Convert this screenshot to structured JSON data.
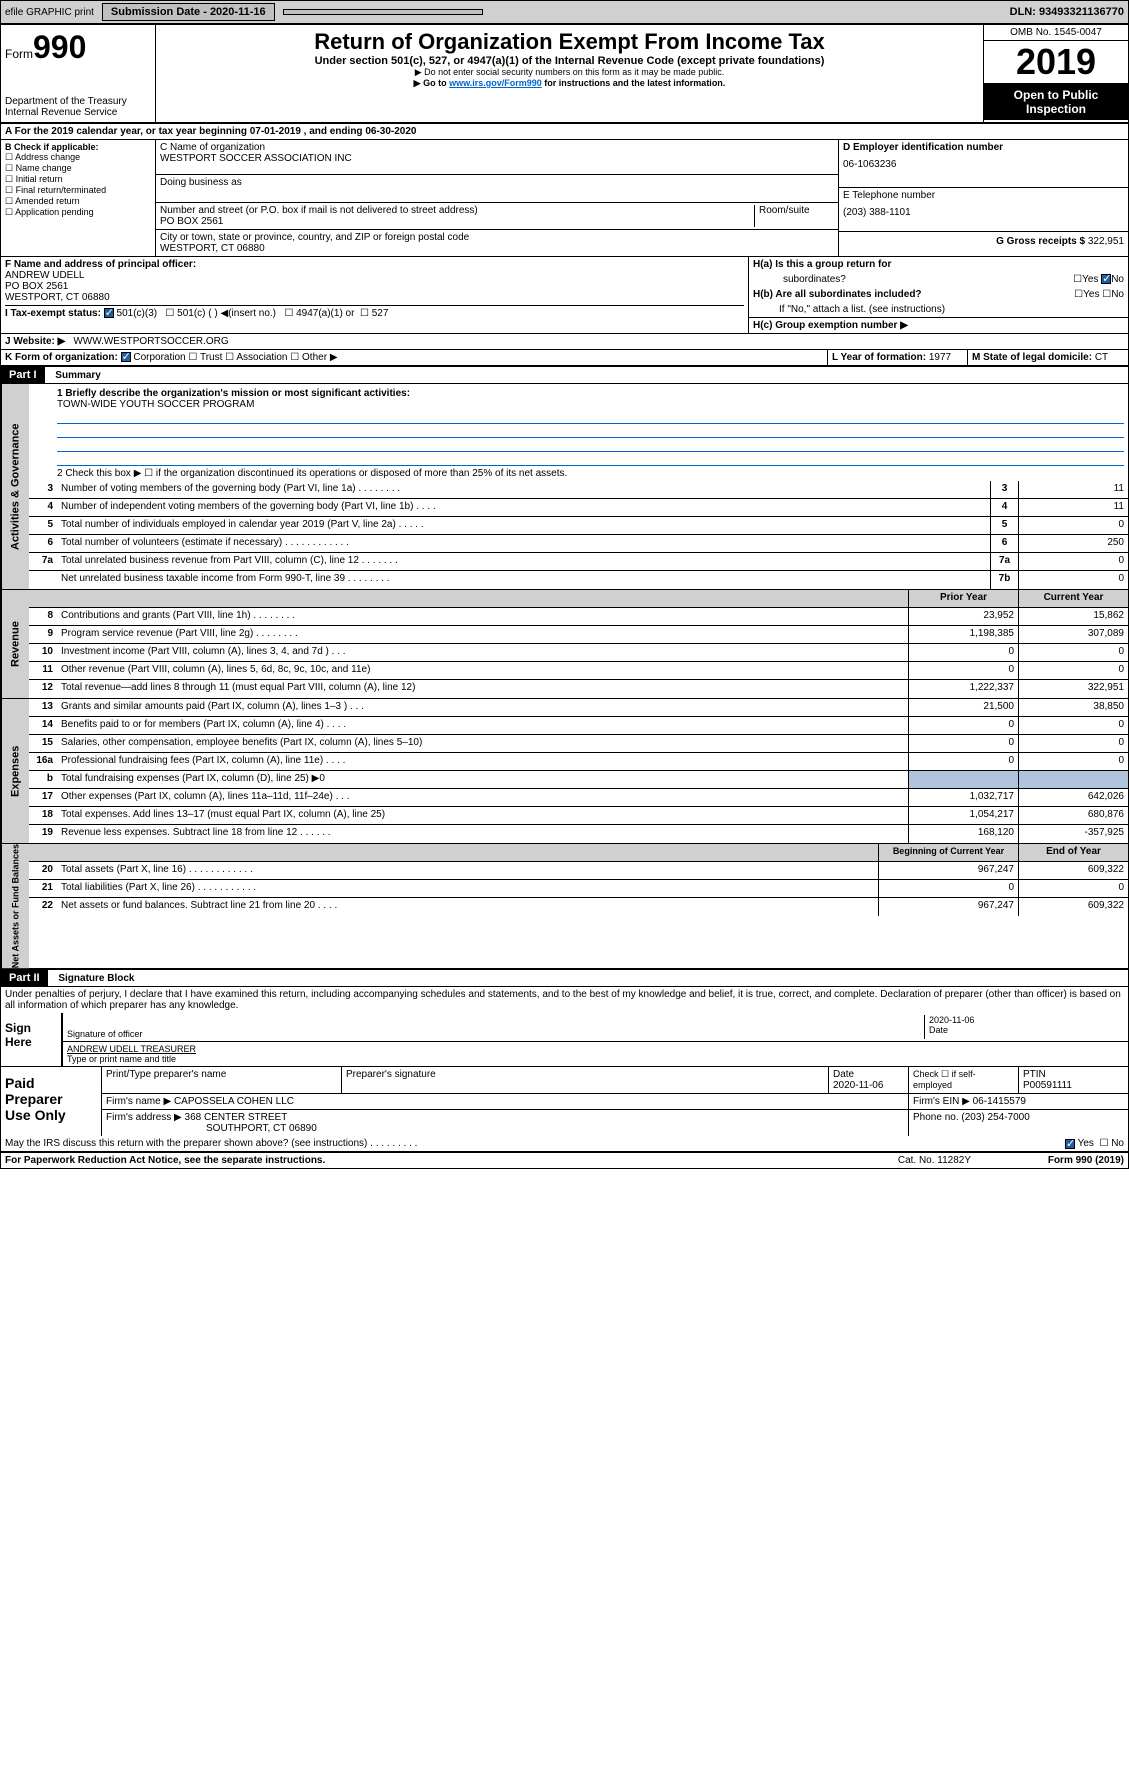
{
  "topbar": {
    "efile": "efile GRAPHIC print",
    "subdate_label": "Submission Date - 2020-11-16",
    "dln": "DLN: 93493321136770"
  },
  "header": {
    "form_word": "Form",
    "form_num": "990",
    "dept": "Department of the Treasury",
    "irs": "Internal Revenue Service",
    "title": "Return of Organization Exempt From Income Tax",
    "sub1": "Under section 501(c), 527, or 4947(a)(1) of the Internal Revenue Code (except private foundations)",
    "sub2": "▶ Do not enter social security numbers on this form as it may be made public.",
    "sub3_a": "▶ Go to ",
    "sub3_link": "www.irs.gov/Form990",
    "sub3_b": " for instructions and the latest information.",
    "omb": "OMB No. 1545-0047",
    "year": "2019",
    "open1": "Open to Public",
    "open2": "Inspection"
  },
  "period": "A For the 2019 calendar year, or tax year beginning 07-01-2019    , and ending 06-30-2020",
  "secB": {
    "label": "B Check if applicable:",
    "opts": [
      "Address change",
      "Name change",
      "Initial return",
      "Final return/terminated",
      "Amended return",
      "Application pending"
    ]
  },
  "secC": {
    "name_label": "C Name of organization",
    "name": "WESTPORT SOCCER ASSOCIATION INC",
    "dba_label": "Doing business as",
    "addr_label": "Number and street (or P.O. box if mail is not delivered to street address)",
    "room_label": "Room/suite",
    "addr": "PO BOX 2561",
    "city_label": "City or town, state or province, country, and ZIP or foreign postal code",
    "city": "WESTPORT, CT  06880"
  },
  "secD": {
    "label": "D Employer identification number",
    "val": "06-1063236"
  },
  "secE": {
    "label": "E Telephone number",
    "val": "(203) 388-1101"
  },
  "secG": {
    "label": "G Gross receipts $",
    "val": "322,951"
  },
  "secF": {
    "label": "F Name and address of principal officer:",
    "name": "ANDREW UDELL",
    "addr": "PO BOX 2561",
    "city": "WESTPORT, CT  06880"
  },
  "secH": {
    "a": "H(a)  Is this a group return for",
    "a2": "subordinates?",
    "b": "H(b)  Are all subordinates included?",
    "b2": "If \"No,\" attach a list. (see instructions)",
    "c": "H(c)  Group exemption number ▶",
    "yes": "Yes",
    "no": "No"
  },
  "secI": {
    "label": "I     Tax-exempt status:",
    "o1": "501(c)(3)",
    "o2": "501(c) (   ) ◀(insert no.)",
    "o3": "4947(a)(1) or",
    "o4": "527"
  },
  "secJ": {
    "label": "J    Website: ▶",
    "val": "WWW.WESTPORTSOCCER.ORG"
  },
  "secK": {
    "label": "K Form of organization:",
    "o1": "Corporation",
    "o2": "Trust",
    "o3": "Association",
    "o4": "Other ▶"
  },
  "secL": {
    "label": "L Year of formation:",
    "val": "1977"
  },
  "secM": {
    "label": "M State of legal domicile:",
    "val": "CT"
  },
  "part1": {
    "label": "Part I",
    "title": "Summary"
  },
  "summary": {
    "l1_label": "1  Briefly describe the organization's mission or most significant activities:",
    "l1_val": "TOWN-WIDE YOUTH SOCCER PROGRAM",
    "l2": "2   Check this box ▶ ☐  if the organization discontinued its operations or disposed of more than 25% of its net assets.",
    "lines": [
      {
        "n": "3",
        "d": "Number of voting members of the governing body (Part VI, line 1a)  .   .   .   .   .   .   .   .",
        "b": "3",
        "v": "11"
      },
      {
        "n": "4",
        "d": "Number of independent voting members of the governing body (Part VI, line 1b)  .   .   .   .",
        "b": "4",
        "v": "11"
      },
      {
        "n": "5",
        "d": "Total number of individuals employed in calendar year 2019 (Part V, line 2a)  .   .   .   .   .",
        "b": "5",
        "v": "0"
      },
      {
        "n": "6",
        "d": "Total number of volunteers (estimate if necessary)   .   .   .   .   .   .   .   .   .   .   .   .",
        "b": "6",
        "v": "250"
      },
      {
        "n": "7a",
        "d": "Total unrelated business revenue from Part VIII, column (C), line 12  .   .   .   .   .   .   .",
        "b": "7a",
        "v": "0"
      },
      {
        "n": "",
        "d": "Net unrelated business taxable income from Form 990-T, line 39  .   .   .   .   .   .   .   .",
        "b": "7b",
        "v": "0"
      }
    ],
    "py": "Prior Year",
    "cy": "Current Year",
    "rev": [
      {
        "n": "8",
        "d": "Contributions and grants (Part VIII, line 1h)  .   .   .   .   .   .   .   .",
        "p": "23,952",
        "c": "15,862"
      },
      {
        "n": "9",
        "d": "Program service revenue (Part VIII, line 2g)   .   .   .   .   .   .   .   .",
        "p": "1,198,385",
        "c": "307,089"
      },
      {
        "n": "10",
        "d": "Investment income (Part VIII, column (A), lines 3, 4, and 7d )   .   .   .",
        "p": "0",
        "c": "0"
      },
      {
        "n": "11",
        "d": "Other revenue (Part VIII, column (A), lines 5, 6d, 8c, 9c, 10c, and 11e)",
        "p": "0",
        "c": "0"
      },
      {
        "n": "12",
        "d": "Total revenue—add lines 8 through 11 (must equal Part VIII, column (A), line 12)",
        "p": "1,222,337",
        "c": "322,951"
      }
    ],
    "exp": [
      {
        "n": "13",
        "d": "Grants and similar amounts paid (Part IX, column (A), lines 1–3 )   .   .   .",
        "p": "21,500",
        "c": "38,850"
      },
      {
        "n": "14",
        "d": "Benefits paid to or for members (Part IX, column (A), line 4)   .   .   .   .",
        "p": "0",
        "c": "0"
      },
      {
        "n": "15",
        "d": "Salaries, other compensation, employee benefits (Part IX, column (A), lines 5–10)",
        "p": "0",
        "c": "0"
      },
      {
        "n": "16a",
        "d": "Professional fundraising fees (Part IX, column (A), line 11e)   .   .   .   .",
        "p": "0",
        "c": "0"
      },
      {
        "n": "b",
        "d": "Total fundraising expenses (Part IX, column (D), line 25) ▶0",
        "p": "",
        "c": "",
        "shade": true
      },
      {
        "n": "17",
        "d": "Other expenses (Part IX, column (A), lines 11a–11d, 11f–24e)   .   .   .",
        "p": "1,032,717",
        "c": "642,026"
      },
      {
        "n": "18",
        "d": "Total expenses. Add lines 13–17 (must equal Part IX, column (A), line 25)",
        "p": "1,054,217",
        "c": "680,876"
      },
      {
        "n": "19",
        "d": "Revenue less expenses. Subtract line 18 from line 12   .   .   .   .   .   .",
        "p": "168,120",
        "c": "-357,925"
      }
    ],
    "bcy": "Beginning of Current Year",
    "eoy": "End of Year",
    "net": [
      {
        "n": "20",
        "d": "Total assets (Part X, line 16)   .   .   .   .   .   .   .   .   .   .   .   .",
        "p": "967,247",
        "c": "609,322"
      },
      {
        "n": "21",
        "d": "Total liabilities (Part X, line 26)   .   .   .   .   .   .   .   .   .   .   .",
        "p": "0",
        "c": "0"
      },
      {
        "n": "22",
        "d": "Net assets or fund balances. Subtract line 21 from line 20   .   .   .   .",
        "p": "967,247",
        "c": "609,322"
      }
    ]
  },
  "vlabels": {
    "gov": "Activities & Governance",
    "rev": "Revenue",
    "exp": "Expenses",
    "net": "Net Assets or Fund Balances"
  },
  "part2": {
    "label": "Part II",
    "title": "Signature Block"
  },
  "perjury": "Under penalties of perjury, I declare that I have examined this return, including accompanying schedules and statements, and to the best of my knowledge and belief, it is true, correct, and complete. Declaration of preparer (other than officer) is based on all information of which preparer has any knowledge.",
  "sign": {
    "label1": "Sign",
    "label2": "Here",
    "sig_label": "Signature of officer",
    "date": "2020-11-06",
    "date_label": "Date",
    "name": "ANDREW UDELL TREASURER",
    "name_label": "Type or print name and title"
  },
  "paid": {
    "label1": "Paid",
    "label2": "Preparer",
    "label3": "Use Only",
    "h1": "Print/Type preparer's name",
    "h2": "Preparer's signature",
    "h3": "Date",
    "h4": "Check ☐ if self-employed",
    "h5": "PTIN",
    "date": "2020-11-06",
    "ptin": "P00591111",
    "firm_label": "Firm's name    ▶",
    "firm": "CAPOSSELA COHEN LLC",
    "ein_label": "Firm's EIN ▶",
    "ein": "06-1415579",
    "addr_label": "Firm's address ▶",
    "addr1": "368 CENTER STREET",
    "addr2": "SOUTHPORT, CT  06890",
    "phone_label": "Phone no.",
    "phone": "(203) 254-7000"
  },
  "discuss": {
    "q": "May the IRS discuss this return with the preparer shown above? (see instructions)   .   .   .   .   .   .   .   .   .",
    "yes": "Yes",
    "no": "No"
  },
  "footer": {
    "pra": "For Paperwork Reduction Act Notice, see the separate instructions.",
    "cat": "Cat. No. 11282Y",
    "form": "Form 990 (2019)"
  }
}
